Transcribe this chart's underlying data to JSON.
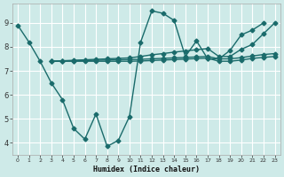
{
  "xlabel": "Humidex (Indice chaleur)",
  "background_color": "#ceeae8",
  "grid_color": "#ffffff",
  "line_color": "#1a6b6b",
  "xlim": [
    -0.5,
    23.5
  ],
  "ylim": [
    3.5,
    9.8
  ],
  "xticks": [
    0,
    1,
    2,
    3,
    4,
    5,
    6,
    7,
    8,
    9,
    10,
    11,
    12,
    13,
    14,
    15,
    16,
    17,
    18,
    19,
    20,
    21,
    22,
    23
  ],
  "yticks": [
    4,
    5,
    6,
    7,
    8,
    9
  ],
  "line1_x": [
    0,
    1,
    2,
    3,
    4,
    5,
    6,
    7,
    8,
    9,
    10,
    11,
    12,
    13,
    14,
    15,
    16,
    17,
    18,
    19,
    20,
    21,
    22
  ],
  "line1_y": [
    8.9,
    8.2,
    7.4,
    6.5,
    5.8,
    4.6,
    4.15,
    5.2,
    3.85,
    4.1,
    5.1,
    8.2,
    9.5,
    9.4,
    9.1,
    7.6,
    8.25,
    7.5,
    7.5,
    7.85,
    8.5,
    8.7,
    9.0
  ],
  "line2_x": [
    3,
    4,
    5,
    6,
    7,
    8,
    9,
    10,
    11,
    12,
    13,
    14,
    15,
    16,
    17,
    18,
    19,
    20,
    21,
    22,
    23
  ],
  "line2_y": [
    7.4,
    7.42,
    7.44,
    7.46,
    7.48,
    7.5,
    7.52,
    7.54,
    7.6,
    7.67,
    7.72,
    7.78,
    7.83,
    7.88,
    7.93,
    7.6,
    7.6,
    7.9,
    8.1,
    8.55,
    9.0
  ],
  "line3_x": [
    3,
    4,
    5,
    6,
    7,
    8,
    9,
    10,
    11,
    12,
    13,
    14,
    15,
    16,
    17,
    18,
    19,
    20,
    21,
    22,
    23
  ],
  "line3_y": [
    7.4,
    7.41,
    7.42,
    7.43,
    7.44,
    7.45,
    7.46,
    7.47,
    7.48,
    7.5,
    7.52,
    7.54,
    7.56,
    7.58,
    7.6,
    7.5,
    7.5,
    7.55,
    7.62,
    7.68,
    7.72
  ],
  "line4_x": [
    3,
    4,
    5,
    6,
    7,
    8,
    9,
    10,
    11,
    12,
    13,
    14,
    15,
    16,
    17,
    18,
    19,
    20,
    21,
    22,
    23
  ],
  "line4_y": [
    7.4,
    7.4,
    7.4,
    7.4,
    7.4,
    7.4,
    7.4,
    7.4,
    7.41,
    7.43,
    7.45,
    7.47,
    7.49,
    7.51,
    7.53,
    7.4,
    7.4,
    7.45,
    7.52,
    7.56,
    7.6
  ]
}
